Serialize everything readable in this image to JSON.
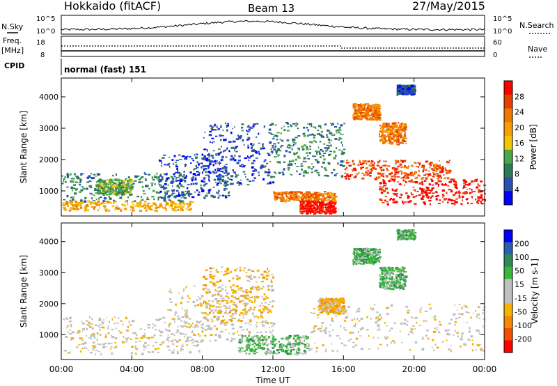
{
  "header": {
    "station": "Hokkaido (fitACF)",
    "beam": "Beam 13",
    "date": "27/May/2015"
  },
  "labels": {
    "nsky": "N.Sky",
    "nsearch": "N.Search",
    "freq": "Freq.",
    "mhz": "[MHz]",
    "cpid": "CPID",
    "nave": "Nave",
    "cpid_value": "normal (fast) 151",
    "pow_exp_top": "10^5",
    "pow_exp_bot": "10^0",
    "freq_hi": "18",
    "freq_lo": "8",
    "nave_hi": "60",
    "nave_lo": "0"
  },
  "colors": {
    "power_scale": [
      "#0000ff",
      "#2a4fb0",
      "#2f7a55",
      "#4aa84a",
      "#f0c800",
      "#f5a000",
      "#f07800",
      "#e84000",
      "#ff0000"
    ],
    "velocity_scale": [
      "#ff0000",
      "#f05000",
      "#f58c00",
      "#f5b400",
      "#c0c0c0",
      "#c0c0c0",
      "#38b838",
      "#2f8a55",
      "#2a5fb0",
      "#0000ff"
    ],
    "ground_scatter": "#b8b8b8"
  },
  "chart_data": [
    {
      "type": "heatmap",
      "title": "Power",
      "ylabel": "Slant Range [km]",
      "xlabel": "Time UT",
      "x_ticks": [
        "00:00",
        "04:00",
        "08:00",
        "12:00",
        "16:00",
        "20:00",
        "00:00"
      ],
      "y_ticks": [
        "1000",
        "2000",
        "3000",
        "4000"
      ],
      "ylim": [
        200,
        4600
      ],
      "colorbar_label": "Power [dB]",
      "colorbar_ticks": [
        "4",
        "8",
        "12",
        "16",
        "20",
        "24",
        "28"
      ],
      "regions": [
        {
          "t0": 0.0,
          "t1": 7.5,
          "r0": 400,
          "r1": 700,
          "color": 5
        },
        {
          "t0": 0.0,
          "t1": 7.0,
          "r0": 700,
          "r1": 1600,
          "color": 2
        },
        {
          "t0": 2.0,
          "t1": 4.0,
          "r0": 900,
          "r1": 1400,
          "color": 3
        },
        {
          "t0": 5.5,
          "t1": 9.5,
          "r0": 800,
          "r1": 2200,
          "color": 1
        },
        {
          "t0": 8.0,
          "t1": 12.0,
          "r0": 1200,
          "r1": 3200,
          "color": 1
        },
        {
          "t0": 12.0,
          "t1": 16.0,
          "r0": 1500,
          "r1": 3200,
          "color": 2
        },
        {
          "t0": 12.0,
          "t1": 15.5,
          "r0": 700,
          "r1": 1000,
          "color": 6
        },
        {
          "t0": 13.5,
          "t1": 15.5,
          "r0": 300,
          "r1": 700,
          "color": 8
        },
        {
          "t0": 16.0,
          "t1": 22.0,
          "r0": 1400,
          "r1": 2000,
          "color": 7
        },
        {
          "t0": 18.0,
          "t1": 24.0,
          "r0": 600,
          "r1": 1400,
          "color": 8
        },
        {
          "t0": 16.5,
          "t1": 18.0,
          "r0": 3300,
          "r1": 3800,
          "color": 6
        },
        {
          "t0": 18.0,
          "t1": 19.5,
          "r0": 2500,
          "r1": 3200,
          "color": 6
        },
        {
          "t0": 19.0,
          "t1": 20.0,
          "r0": 4100,
          "r1": 4400,
          "color": 1
        }
      ]
    },
    {
      "type": "heatmap",
      "title": "Velocity",
      "ylabel": "Slant Range [km]",
      "xlabel": "Time UT",
      "x_ticks": [
        "00:00",
        "04:00",
        "08:00",
        "12:00",
        "16:00",
        "20:00",
        "00:00"
      ],
      "y_ticks": [
        "1000",
        "2000",
        "3000",
        "4000"
      ],
      "ylim": [
        200,
        4600
      ],
      "colorbar_label": "Velocity [m s-1]",
      "colorbar_ticks": [
        "200",
        "100",
        "50",
        "15",
        "-15",
        "-50",
        "-100",
        "-200"
      ],
      "regions": [
        {
          "t0": 0.0,
          "t1": 8.0,
          "r0": 400,
          "r1": 1600,
          "color": 4
        },
        {
          "t0": 6.0,
          "t1": 12.0,
          "r0": 800,
          "r1": 2600,
          "color": 4
        },
        {
          "t0": 8.0,
          "t1": 12.0,
          "r0": 1400,
          "r1": 3200,
          "color": 3
        },
        {
          "t0": 10.0,
          "t1": 14.0,
          "r0": 400,
          "r1": 1000,
          "color": 6
        },
        {
          "t0": 14.0,
          "t1": 24.0,
          "r0": 500,
          "r1": 2000,
          "color": 4
        },
        {
          "t0": 14.5,
          "t1": 16.0,
          "r0": 1700,
          "r1": 2200,
          "color": 3
        },
        {
          "t0": 16.5,
          "t1": 18.0,
          "r0": 3300,
          "r1": 3800,
          "color": 6
        },
        {
          "t0": 18.0,
          "t1": 19.5,
          "r0": 2500,
          "r1": 3200,
          "color": 6
        },
        {
          "t0": 19.0,
          "t1": 20.0,
          "r0": 4100,
          "r1": 4400,
          "color": 6
        }
      ]
    }
  ]
}
